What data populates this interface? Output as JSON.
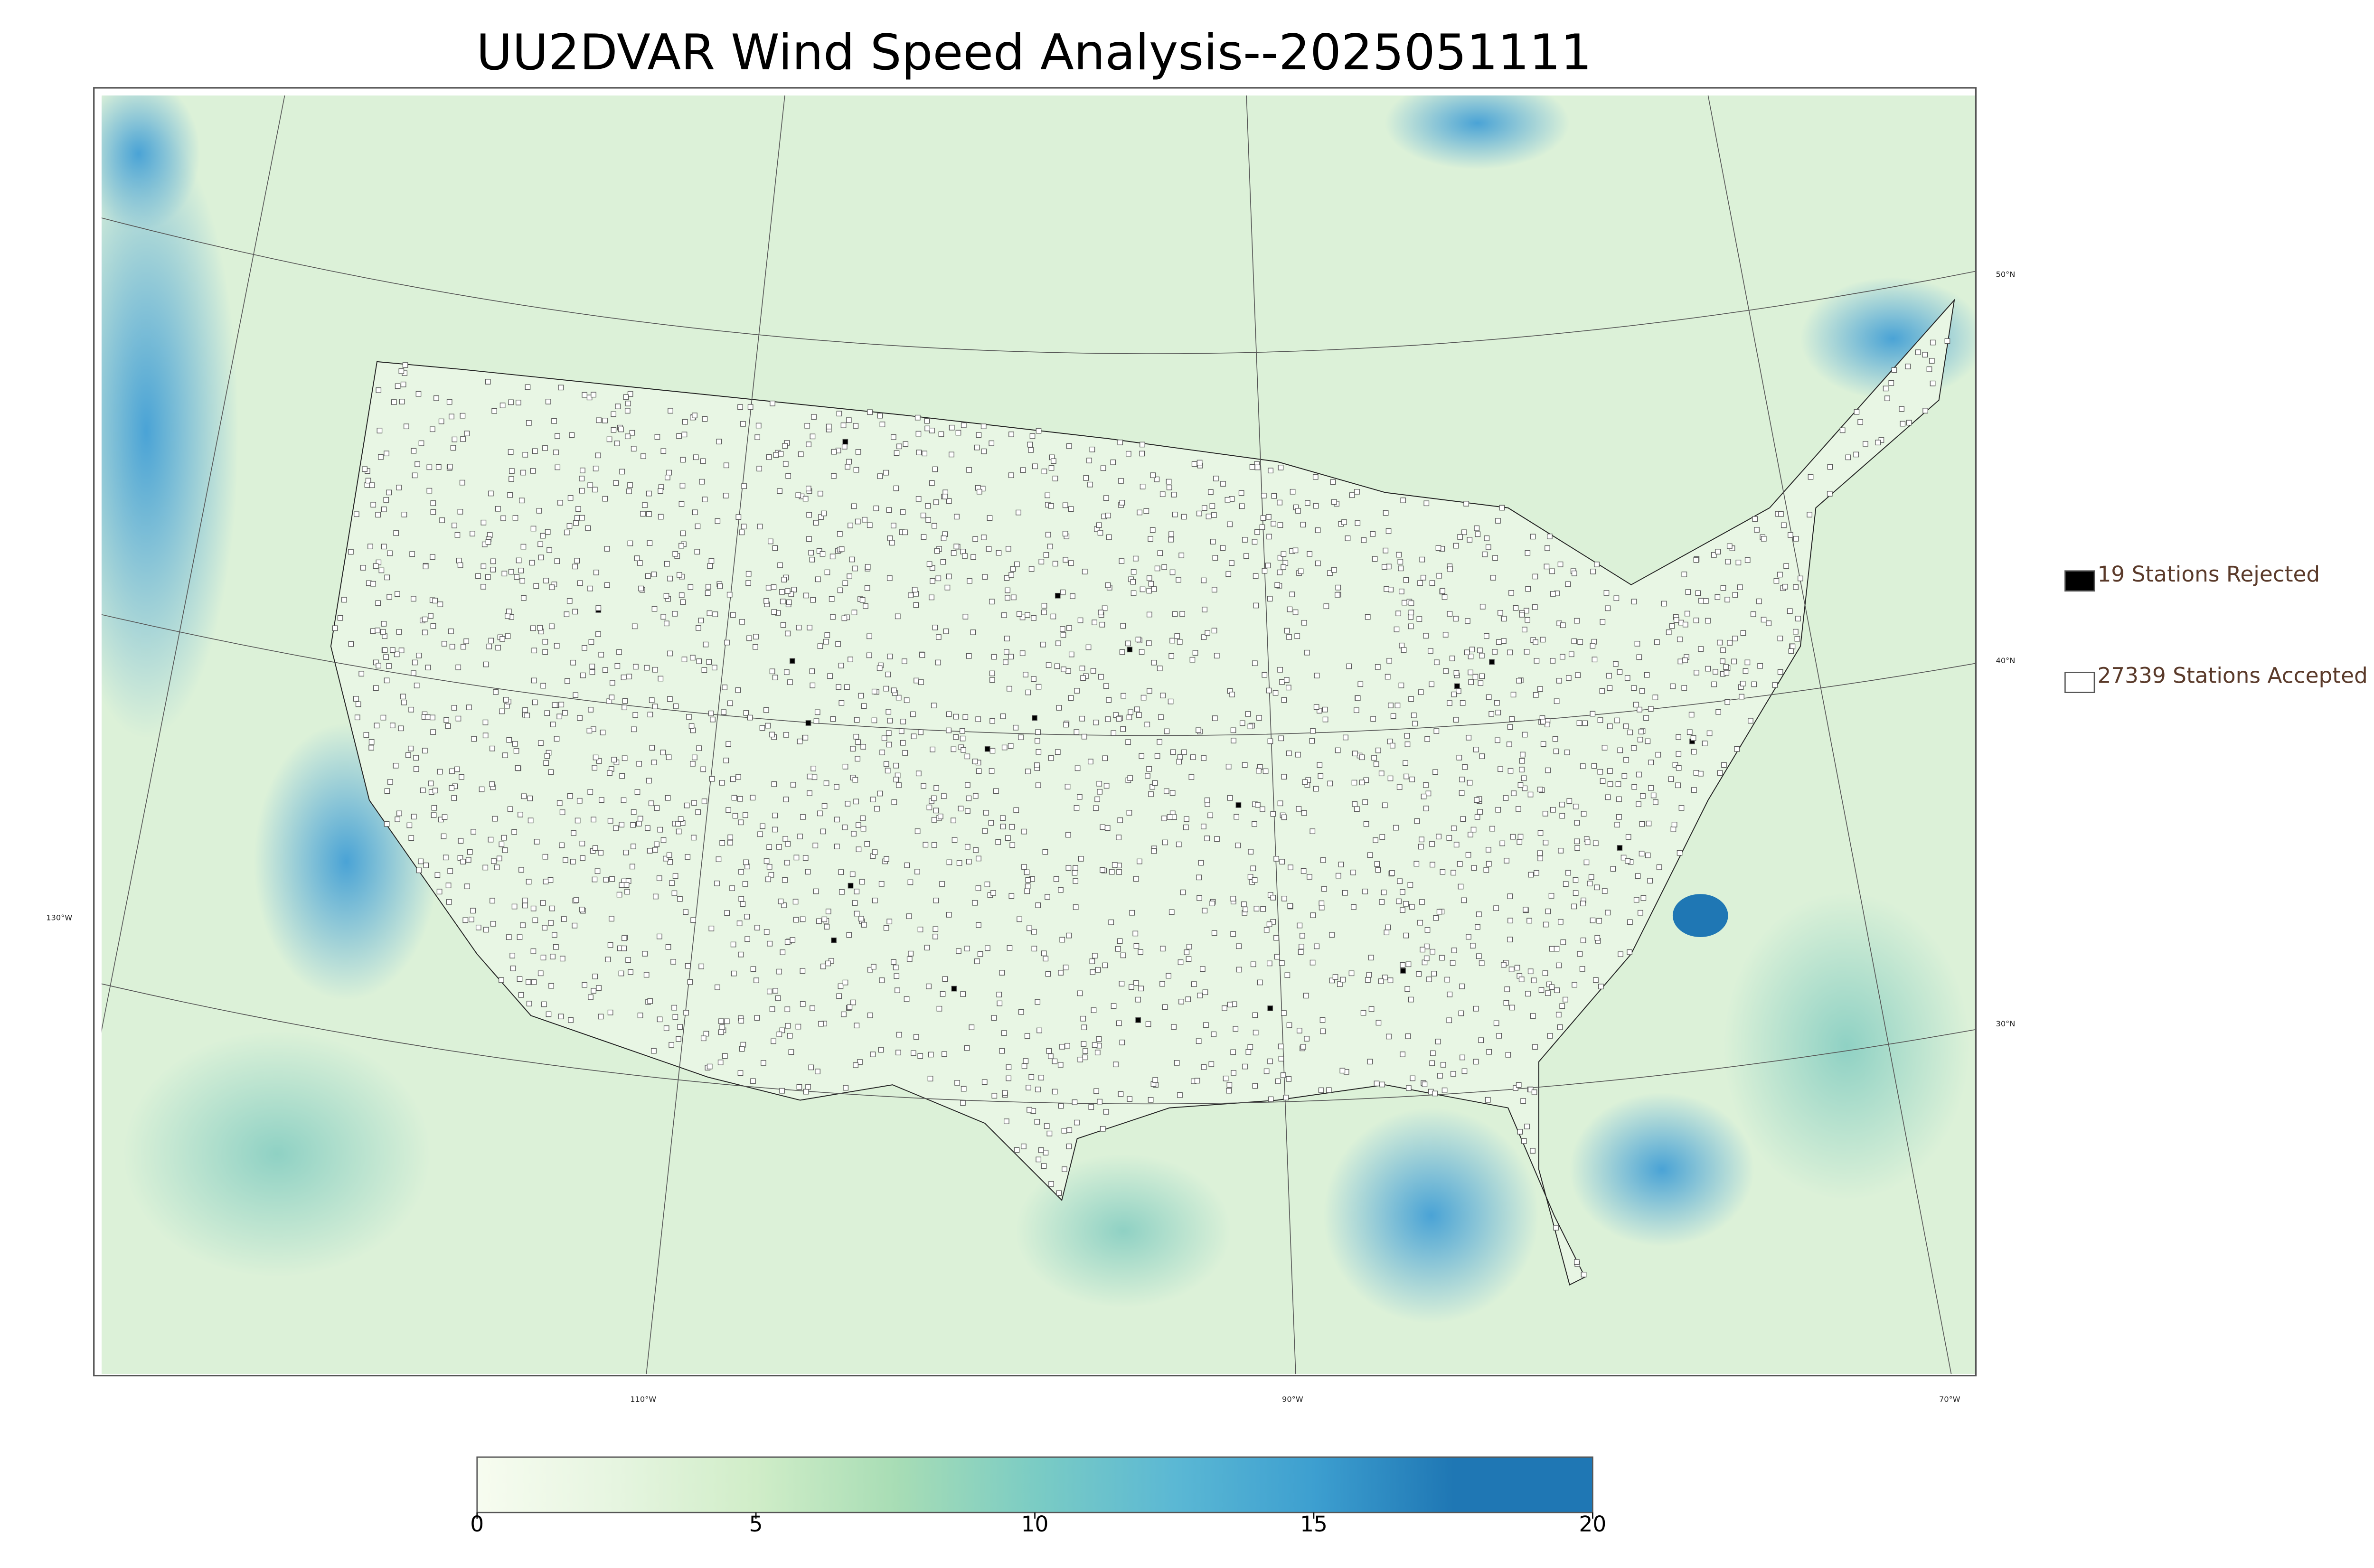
{
  "title": "UU2DVAR Wind Speed Analysis--2025051111",
  "map": {
    "lat_labels": [
      "50°N",
      "40°N",
      "30°N"
    ],
    "lon_labels": [
      "130°W",
      "110°W",
      "90°W",
      "70°W"
    ]
  },
  "legend": [
    {
      "label": "19 Stations Rejected",
      "color": "#000000"
    },
    {
      "label": "27339 Stations Accepted",
      "color": "#ffffff"
    }
  ],
  "colorbar": {
    "lim": [
      0,
      20
    ],
    "ticks": [
      0,
      5,
      10,
      15,
      20
    ],
    "colors": [
      "#f7fcf0",
      "#e6f5e0",
      "#d0edc8",
      "#a8ddb5",
      "#7bccc4",
      "#5bb8d4",
      "#3d9fd0",
      "#1f77b4",
      "#1f77b4"
    ]
  }
}
